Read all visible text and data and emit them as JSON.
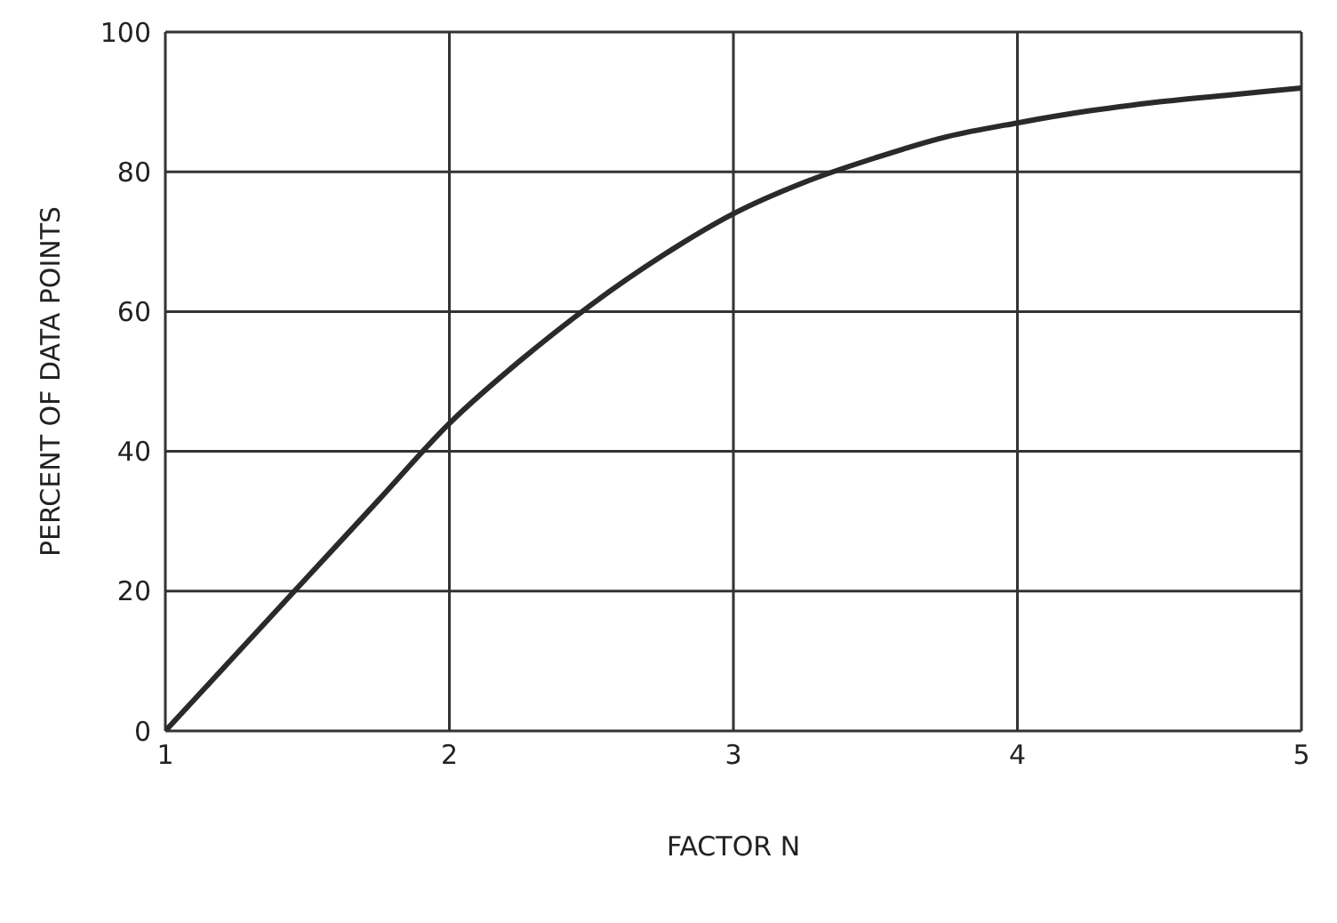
{
  "chart_data": {
    "type": "line",
    "xlabel": "FACTOR N",
    "ylabel": "PERCENT OF DATA POINTS",
    "x": [
      1,
      1.25,
      1.5,
      1.75,
      2,
      2.25,
      2.5,
      2.75,
      3,
      3.25,
      3.5,
      3.75,
      4,
      4.25,
      4.5,
      4.75,
      5
    ],
    "series": [
      {
        "color": "#2a2a2a",
        "values": [
          0,
          11,
          22,
          33,
          44,
          53,
          61,
          68,
          74,
          78.5,
          82,
          85,
          87,
          88.7,
          90,
          91,
          92
        ]
      }
    ],
    "xlim": [
      1,
      5
    ],
    "xticks": [
      1,
      2,
      3,
      4,
      5
    ],
    "ylim": [
      0,
      100
    ],
    "yticks": [
      0,
      20,
      40,
      60,
      80,
      100
    ],
    "grid": true,
    "legend": false,
    "marker": "none",
    "line_style": "solid"
  }
}
